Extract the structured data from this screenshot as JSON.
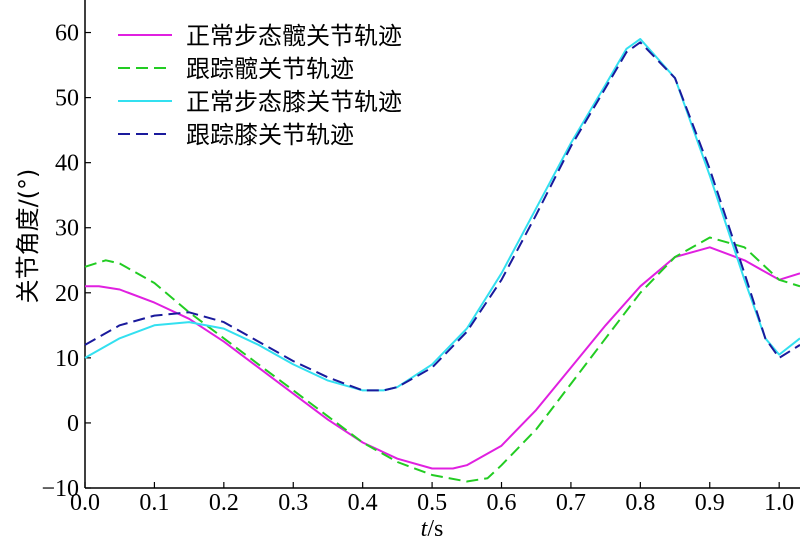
{
  "chart_data": {
    "type": "line",
    "xlabel_italic": "t",
    "xlabel_unit": "/s",
    "ylabel": "关节角度/(°)",
    "xlim": [
      0.0,
      1.03
    ],
    "ylim": [
      -10,
      65
    ],
    "x_ticks": [
      "0.0",
      "0.1",
      "0.2",
      "0.3",
      "0.4",
      "0.5",
      "0.6",
      "0.7",
      "0.8",
      "0.9",
      "1.0"
    ],
    "x_tick_values": [
      0.0,
      0.1,
      0.2,
      0.3,
      0.4,
      0.5,
      0.6,
      0.7,
      0.8,
      0.9,
      1.0
    ],
    "y_ticks": [
      "−10",
      "0",
      "10",
      "20",
      "30",
      "40",
      "50",
      "60"
    ],
    "y_tick_values": [
      -10,
      0,
      10,
      20,
      30,
      40,
      50,
      60
    ],
    "grid": false,
    "legend_position": "top-left",
    "series": [
      {
        "name": "正常步态髋关节轨迹",
        "color": "#e020e0",
        "dash": "solid",
        "x": [
          0.0,
          0.02,
          0.05,
          0.1,
          0.15,
          0.2,
          0.25,
          0.3,
          0.35,
          0.4,
          0.45,
          0.5,
          0.53,
          0.55,
          0.6,
          0.65,
          0.7,
          0.75,
          0.8,
          0.85,
          0.9,
          0.95,
          1.0,
          1.03
        ],
        "y": [
          21,
          21,
          20.5,
          18.5,
          16,
          12.5,
          8.5,
          4.5,
          0.5,
          -3,
          -5.5,
          -7,
          -7,
          -6.5,
          -3.5,
          2,
          8.5,
          15,
          21,
          25.5,
          27,
          25,
          22,
          23
        ]
      },
      {
        "name": "跟踪髋关节轨迹",
        "color": "#22cc22",
        "dash": "dashed",
        "x": [
          0.0,
          0.03,
          0.05,
          0.1,
          0.15,
          0.2,
          0.25,
          0.3,
          0.35,
          0.4,
          0.45,
          0.5,
          0.55,
          0.58,
          0.6,
          0.65,
          0.7,
          0.75,
          0.8,
          0.85,
          0.9,
          0.95,
          1.0,
          1.03
        ],
        "y": [
          24,
          25,
          24.5,
          21.5,
          17,
          13,
          9,
          5,
          1,
          -3,
          -6,
          -8,
          -9,
          -8.5,
          -6.5,
          -1,
          6,
          13,
          20,
          25.5,
          28.5,
          27,
          22,
          21
        ]
      },
      {
        "name": "正常步态膝关节轨迹",
        "color": "#33e0f0",
        "dash": "solid",
        "x": [
          0.0,
          0.05,
          0.1,
          0.15,
          0.2,
          0.25,
          0.3,
          0.35,
          0.4,
          0.43,
          0.45,
          0.5,
          0.55,
          0.6,
          0.65,
          0.7,
          0.75,
          0.78,
          0.8,
          0.85,
          0.9,
          0.95,
          0.98,
          1.0,
          1.03
        ],
        "y": [
          10,
          13,
          15,
          15.5,
          14.5,
          12,
          9,
          6.5,
          5,
          5,
          5.5,
          9,
          14.5,
          23,
          33,
          43,
          52,
          57.5,
          59,
          53,
          38,
          22,
          13,
          10.5,
          13
        ]
      },
      {
        "name": "跟踪膝关节轨迹",
        "color": "#1a1a9c",
        "dash": "dashed",
        "x": [
          0.0,
          0.05,
          0.1,
          0.15,
          0.2,
          0.25,
          0.3,
          0.35,
          0.4,
          0.43,
          0.45,
          0.5,
          0.55,
          0.6,
          0.65,
          0.7,
          0.75,
          0.78,
          0.8,
          0.85,
          0.9,
          0.95,
          0.98,
          1.0,
          1.03
        ],
        "y": [
          12,
          15,
          16.5,
          17,
          15.5,
          12.5,
          9.5,
          7,
          5,
          5,
          5.5,
          8.5,
          14,
          22,
          32,
          42.5,
          51.5,
          57,
          58.5,
          53,
          39,
          23,
          13,
          10,
          12
        ]
      }
    ]
  }
}
